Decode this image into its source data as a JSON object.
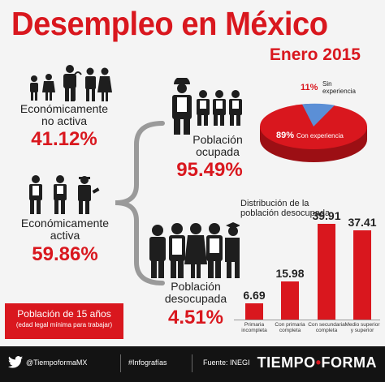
{
  "header": {
    "title": "Desempleo en México",
    "subtitle": "Enero 2015"
  },
  "inactive": {
    "label_line1": "Económicamente",
    "label_line2": "no activa",
    "percent": "41.12%"
  },
  "active": {
    "label_line1": "Económicamente",
    "label_line2": "activa",
    "percent": "59.86%"
  },
  "employed": {
    "label_line1": "Población",
    "label_line2": "ocupada",
    "percent": "95.49%"
  },
  "unemployed": {
    "label_line1": "Población",
    "label_line2": "desocupada",
    "percent": "4.51%"
  },
  "population_note": {
    "line1": "Población de 15 años",
    "line2": "(edad legal mínima para trabajar)"
  },
  "pie": {
    "slices": [
      {
        "name": "Sin experiencia",
        "percent_label": "11%",
        "value": 11,
        "color": "#5b8fd6"
      },
      {
        "name": "Con experiencia",
        "percent_label": "89%",
        "value": 89,
        "color": "#d9171e"
      }
    ],
    "label_sin_1": "Sin",
    "label_sin_2": "experiencia"
  },
  "chart_data": {
    "type": "bar",
    "title": "Distribución de la población desocupada",
    "title_line1": "Distribución de la",
    "title_line2": "población desocupada",
    "categories": [
      "Primaria incompleta",
      "Con primaria completa",
      "Con secundaria completa",
      "Medio superior y superior"
    ],
    "category_lines": [
      [
        "Primaria",
        "incompleta"
      ],
      [
        "Con primaria",
        "completa"
      ],
      [
        "Con secundaria",
        "completa"
      ],
      [
        "Medio superior",
        "y superior"
      ]
    ],
    "values": [
      6.69,
      15.98,
      39.91,
      37.41
    ],
    "value_labels": [
      "6.69",
      "15.98",
      "39.91",
      "37.41"
    ],
    "ylim": [
      0,
      40
    ],
    "color": "#d9171e"
  },
  "footer": {
    "twitter": "@TiempoformaMX",
    "hashtag": "#Infografías",
    "source": "Fuente: INEGI",
    "brand_left": "TIEMPO",
    "brand_right": "FORMA"
  },
  "colors": {
    "accent": "#d9171e",
    "dark": "#1e1e1e",
    "footer_bg": "#131313",
    "pie_blue": "#5b8fd6"
  }
}
